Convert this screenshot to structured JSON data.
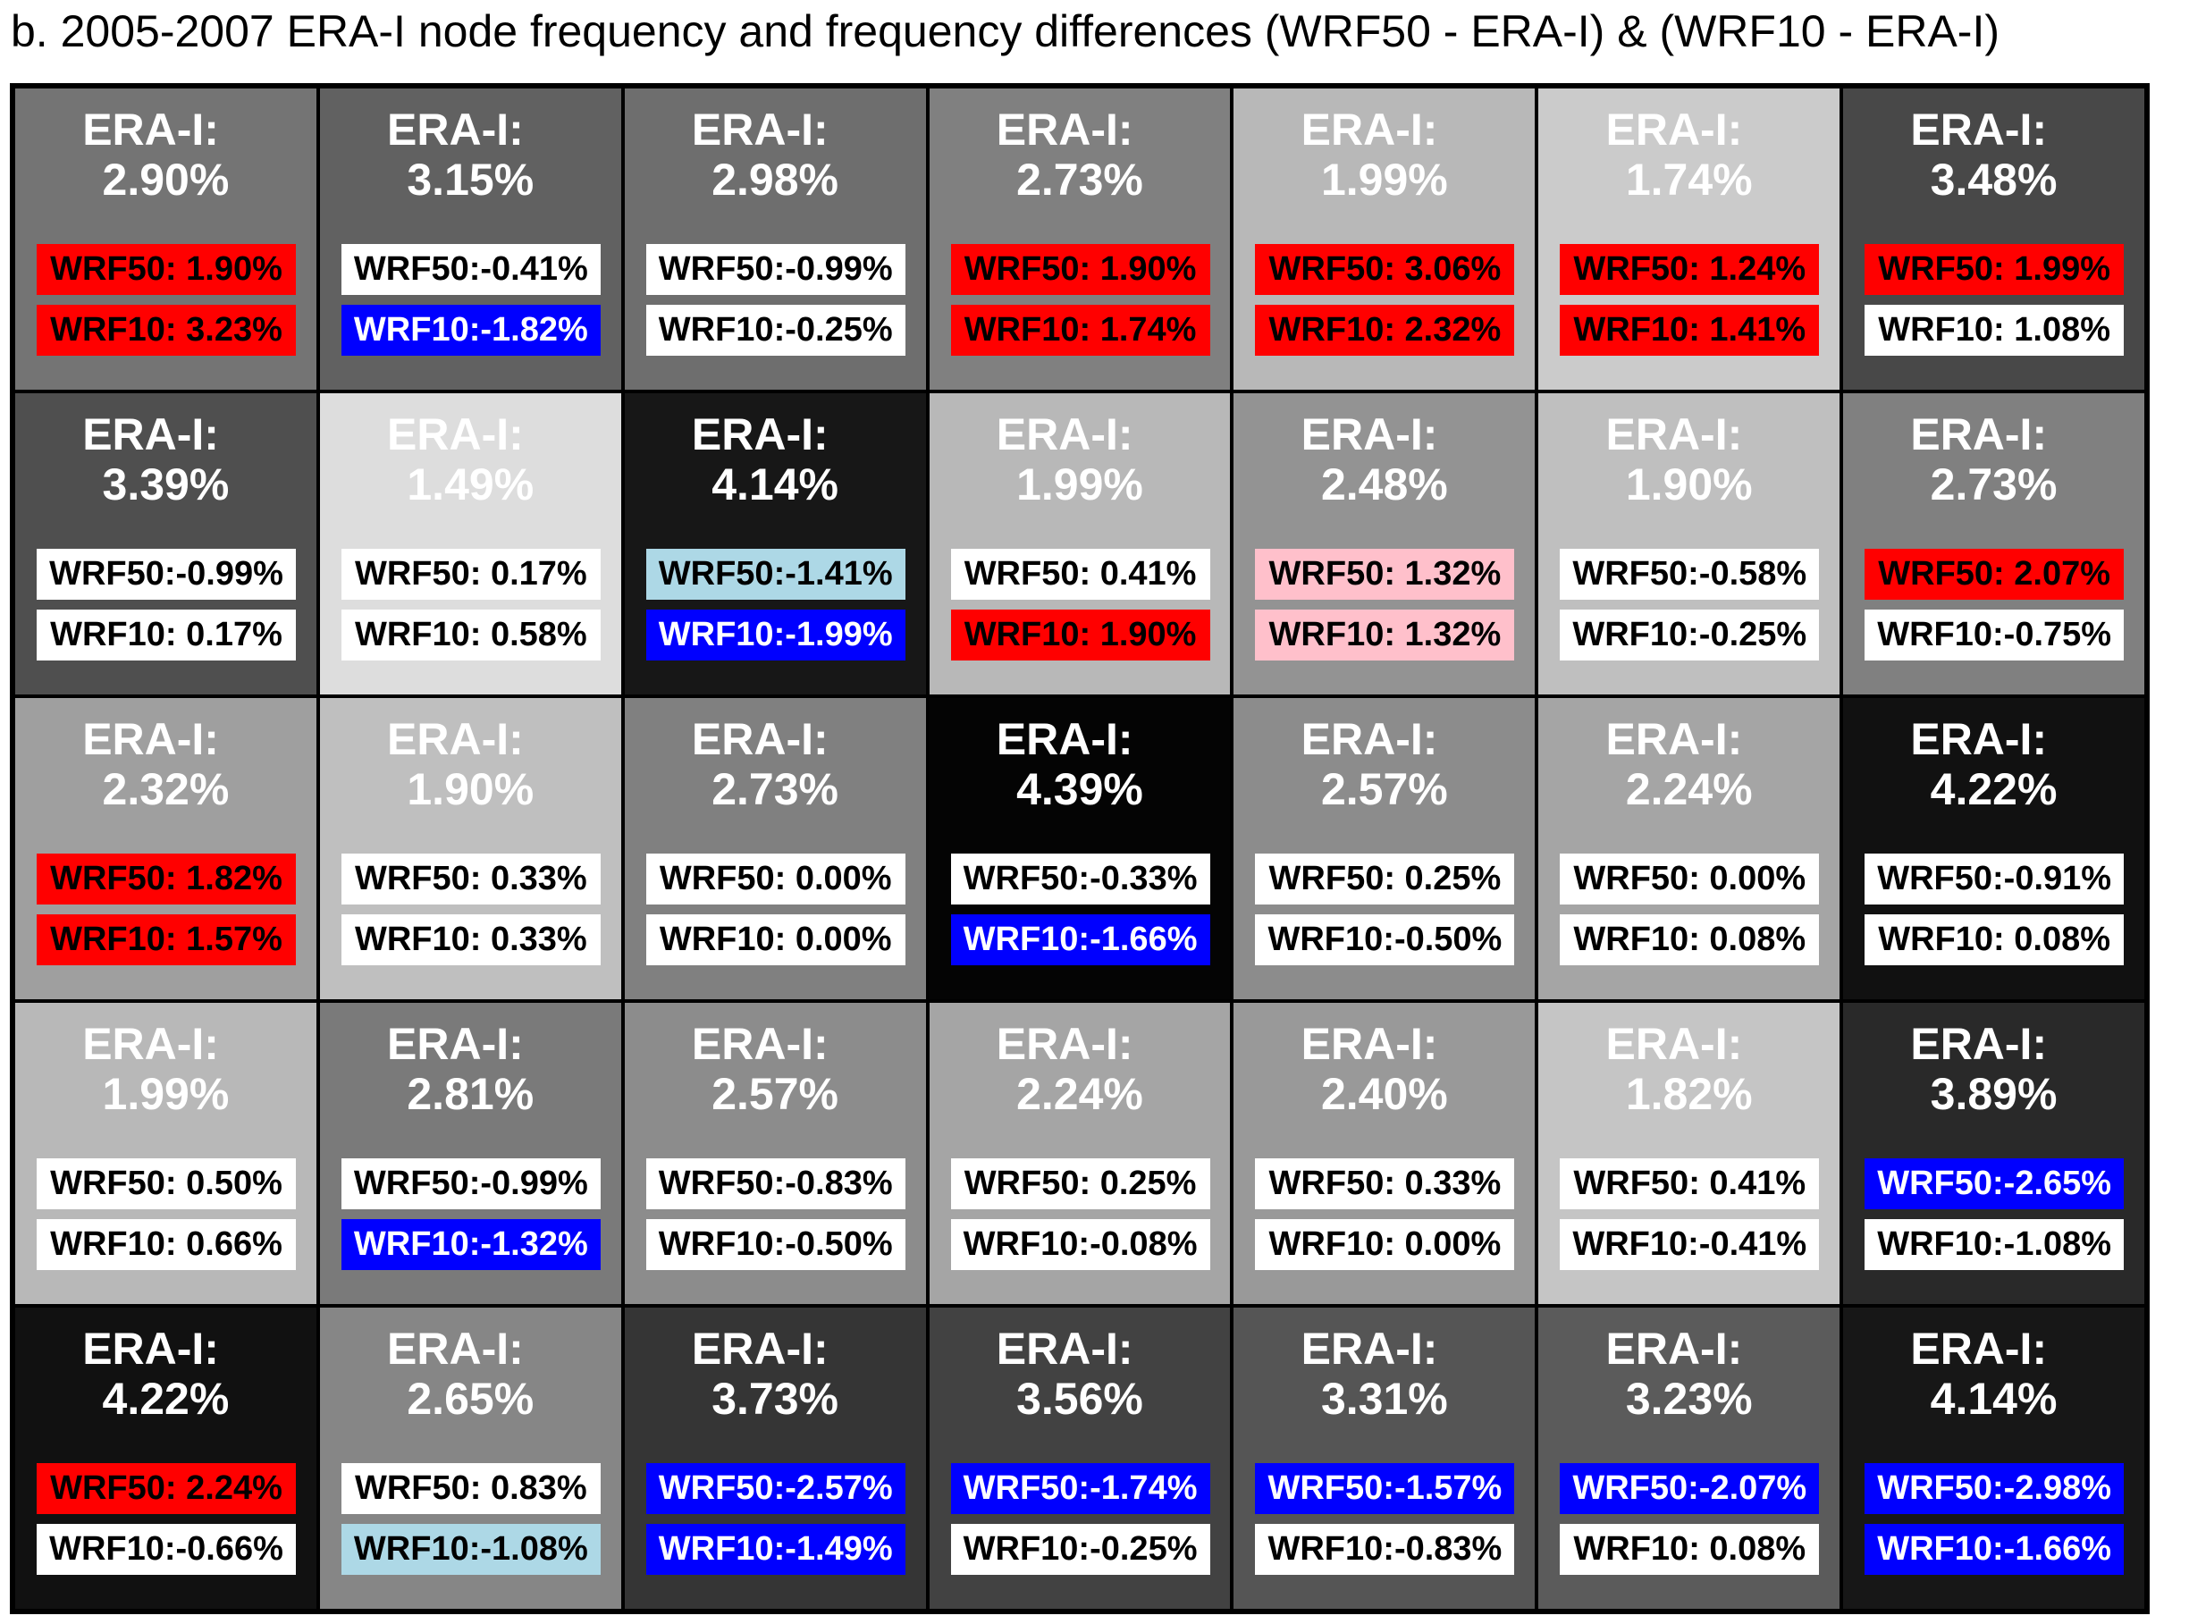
{
  "title": "b. 2005-2007 ERA-I node frequency and frequency differences (WRF50 - ERA-I) & (WRF10 - ERA-I)",
  "chart_data": {
    "type": "table",
    "title": "b. 2005-2007 ERA-I node frequency and frequency differences (WRF50 - ERA-I) & (WRF10 - ERA-I)",
    "rows": 5,
    "columns": 7,
    "shading": "grayscale by ERA-I frequency (darker = higher)",
    "box_colors": {
      "red": "#ff0000",
      "pink": "#ffc0cb",
      "white": "#ffffff",
      "lightblue": "#add8e6",
      "blue": "#0000ff"
    },
    "cells": [
      {
        "era_label": "ERA-I:",
        "era": "2.90%",
        "wrf50": "WRF50: 1.90%",
        "wrf50_color": "red",
        "wrf10": "WRF10: 3.23%",
        "wrf10_color": "red"
      },
      {
        "era_label": "ERA-I:",
        "era": "3.15%",
        "wrf50": "WRF50:-0.41%",
        "wrf50_color": "white",
        "wrf10": "WRF10:-1.82%",
        "wrf10_color": "blue"
      },
      {
        "era_label": "ERA-I:",
        "era": "2.98%",
        "wrf50": "WRF50:-0.99%",
        "wrf50_color": "white",
        "wrf10": "WRF10:-0.25%",
        "wrf10_color": "white"
      },
      {
        "era_label": "ERA-I:",
        "era": "2.73%",
        "wrf50": "WRF50: 1.90%",
        "wrf50_color": "red",
        "wrf10": "WRF10: 1.74%",
        "wrf10_color": "red"
      },
      {
        "era_label": "ERA-I:",
        "era": "1.99%",
        "wrf50": "WRF50: 3.06%",
        "wrf50_color": "red",
        "wrf10": "WRF10: 2.32%",
        "wrf10_color": "red"
      },
      {
        "era_label": "ERA-I:",
        "era": "1.74%",
        "wrf50": "WRF50: 1.24%",
        "wrf50_color": "red",
        "wrf10": "WRF10: 1.41%",
        "wrf10_color": "red"
      },
      {
        "era_label": "ERA-I:",
        "era": "3.48%",
        "wrf50": "WRF50: 1.99%",
        "wrf50_color": "red",
        "wrf10": "WRF10: 1.08%",
        "wrf10_color": "white"
      },
      {
        "era_label": "ERA-I:",
        "era": "3.39%",
        "wrf50": "WRF50:-0.99%",
        "wrf50_color": "white",
        "wrf10": "WRF10: 0.17%",
        "wrf10_color": "white"
      },
      {
        "era_label": "ERA-I:",
        "era": "1.49%",
        "wrf50": "WRF50: 0.17%",
        "wrf50_color": "white",
        "wrf10": "WRF10: 0.58%",
        "wrf10_color": "white"
      },
      {
        "era_label": "ERA-I:",
        "era": "4.14%",
        "wrf50": "WRF50:-1.41%",
        "wrf50_color": "lightblue",
        "wrf10": "WRF10:-1.99%",
        "wrf10_color": "blue"
      },
      {
        "era_label": "ERA-I:",
        "era": "1.99%",
        "wrf50": "WRF50: 0.41%",
        "wrf50_color": "white",
        "wrf10": "WRF10: 1.90%",
        "wrf10_color": "red"
      },
      {
        "era_label": "ERA-I:",
        "era": "2.48%",
        "wrf50": "WRF50: 1.32%",
        "wrf50_color": "pink",
        "wrf10": "WRF10: 1.32%",
        "wrf10_color": "pink"
      },
      {
        "era_label": "ERA-I:",
        "era": "1.90%",
        "wrf50": "WRF50:-0.58%",
        "wrf50_color": "white",
        "wrf10": "WRF10:-0.25%",
        "wrf10_color": "white"
      },
      {
        "era_label": "ERA-I:",
        "era": "2.73%",
        "wrf50": "WRF50: 2.07%",
        "wrf50_color": "red",
        "wrf10": "WRF10:-0.75%",
        "wrf10_color": "white"
      },
      {
        "era_label": "ERA-I:",
        "era": "2.32%",
        "wrf50": "WRF50: 1.82%",
        "wrf50_color": "red",
        "wrf10": "WRF10: 1.57%",
        "wrf10_color": "red"
      },
      {
        "era_label": "ERA-I:",
        "era": "1.90%",
        "wrf50": "WRF50: 0.33%",
        "wrf50_color": "white",
        "wrf10": "WRF10: 0.33%",
        "wrf10_color": "white"
      },
      {
        "era_label": "ERA-I:",
        "era": "2.73%",
        "wrf50": "WRF50: 0.00%",
        "wrf50_color": "white",
        "wrf10": "WRF10: 0.00%",
        "wrf10_color": "white"
      },
      {
        "era_label": "ERA-I:",
        "era": "4.39%",
        "wrf50": "WRF50:-0.33%",
        "wrf50_color": "white",
        "wrf10": "WRF10:-1.66%",
        "wrf10_color": "blue"
      },
      {
        "era_label": "ERA-I:",
        "era": "2.57%",
        "wrf50": "WRF50: 0.25%",
        "wrf50_color": "white",
        "wrf10": "WRF10:-0.50%",
        "wrf10_color": "white"
      },
      {
        "era_label": "ERA-I:",
        "era": "2.24%",
        "wrf50": "WRF50: 0.00%",
        "wrf50_color": "white",
        "wrf10": "WRF10: 0.08%",
        "wrf10_color": "white"
      },
      {
        "era_label": "ERA-I:",
        "era": "4.22%",
        "wrf50": "WRF50:-0.91%",
        "wrf50_color": "white",
        "wrf10": "WRF10: 0.08%",
        "wrf10_color": "white"
      },
      {
        "era_label": "ERA-I:",
        "era": "1.99%",
        "wrf50": "WRF50: 0.50%",
        "wrf50_color": "white",
        "wrf10": "WRF10: 0.66%",
        "wrf10_color": "white"
      },
      {
        "era_label": "ERA-I:",
        "era": "2.81%",
        "wrf50": "WRF50:-0.99%",
        "wrf50_color": "white",
        "wrf10": "WRF10:-1.32%",
        "wrf10_color": "blue"
      },
      {
        "era_label": "ERA-I:",
        "era": "2.57%",
        "wrf50": "WRF50:-0.83%",
        "wrf50_color": "white",
        "wrf10": "WRF10:-0.50%",
        "wrf10_color": "white"
      },
      {
        "era_label": "ERA-I:",
        "era": "2.24%",
        "wrf50": "WRF50: 0.25%",
        "wrf50_color": "white",
        "wrf10": "WRF10:-0.08%",
        "wrf10_color": "white"
      },
      {
        "era_label": "ERA-I:",
        "era": "2.40%",
        "wrf50": "WRF50: 0.33%",
        "wrf50_color": "white",
        "wrf10": "WRF10: 0.00%",
        "wrf10_color": "white"
      },
      {
        "era_label": "ERA-I:",
        "era": "1.82%",
        "wrf50": "WRF50: 0.41%",
        "wrf50_color": "white",
        "wrf10": "WRF10:-0.41%",
        "wrf10_color": "white"
      },
      {
        "era_label": "ERA-I:",
        "era": "3.89%",
        "wrf50": "WRF50:-2.65%",
        "wrf50_color": "blue",
        "wrf10": "WRF10:-1.08%",
        "wrf10_color": "white"
      },
      {
        "era_label": "ERA-I:",
        "era": "4.22%",
        "wrf50": "WRF50: 2.24%",
        "wrf50_color": "red",
        "wrf10": "WRF10:-0.66%",
        "wrf10_color": "white"
      },
      {
        "era_label": "ERA-I:",
        "era": "2.65%",
        "wrf50": "WRF50: 0.83%",
        "wrf50_color": "white",
        "wrf10": "WRF10:-1.08%",
        "wrf10_color": "lightblue"
      },
      {
        "era_label": "ERA-I:",
        "era": "3.73%",
        "wrf50": "WRF50:-2.57%",
        "wrf50_color": "blue",
        "wrf10": "WRF10:-1.49%",
        "wrf10_color": "blue"
      },
      {
        "era_label": "ERA-I:",
        "era": "3.56%",
        "wrf50": "WRF50:-1.74%",
        "wrf50_color": "blue",
        "wrf10": "WRF10:-0.25%",
        "wrf10_color": "white"
      },
      {
        "era_label": "ERA-I:",
        "era": "3.31%",
        "wrf50": "WRF50:-1.57%",
        "wrf50_color": "blue",
        "wrf10": "WRF10:-0.83%",
        "wrf10_color": "white"
      },
      {
        "era_label": "ERA-I:",
        "era": "3.23%",
        "wrf50": "WRF50:-2.07%",
        "wrf50_color": "blue",
        "wrf10": "WRF10: 0.08%",
        "wrf10_color": "white"
      },
      {
        "era_label": "ERA-I:",
        "era": "4.14%",
        "wrf50": "WRF50:-2.98%",
        "wrf50_color": "blue",
        "wrf10": "WRF10:-1.66%",
        "wrf10_color": "blue"
      }
    ]
  }
}
